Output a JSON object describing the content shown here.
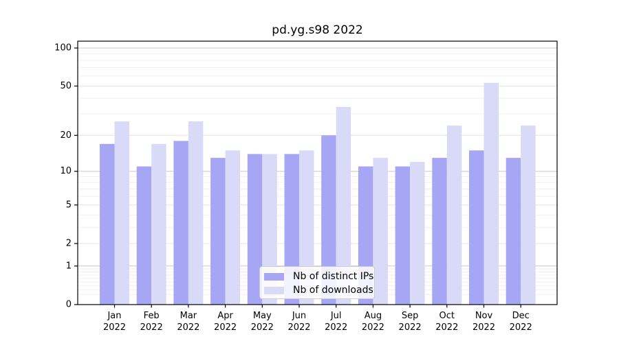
{
  "title": "pd.yg.s98 2022",
  "chart_data": {
    "type": "bar",
    "title": "pd.yg.s98 2022",
    "categories": [
      "Jan 2022",
      "Feb 2022",
      "Mar 2022",
      "Apr 2022",
      "May 2022",
      "Jun 2022",
      "Jul 2022",
      "Aug 2022",
      "Sep 2022",
      "Oct 2022",
      "Nov 2022",
      "Dec 2022"
    ],
    "series": [
      {
        "name": "Nb of distinct IPs",
        "color": "#a6a6f5",
        "values": [
          17,
          11,
          18,
          13,
          14,
          14,
          20,
          11,
          11,
          13,
          15,
          13
        ]
      },
      {
        "name": "Nb of downloads",
        "color": "#d9d9f8",
        "values": [
          26,
          17,
          26,
          15,
          14,
          15,
          34,
          13,
          12,
          24,
          53,
          24
        ]
      }
    ],
    "xlabel": "",
    "ylabel": "",
    "yscale": "log1p",
    "ylim": [
      0,
      113
    ],
    "y_major_ticks": [
      0,
      1,
      2,
      5,
      10,
      20,
      50,
      100
    ],
    "y_minor_ticks": [
      0.2,
      0.3,
      0.4,
      0.5,
      0.6,
      0.7,
      0.8,
      0.9,
      3,
      4,
      6,
      7,
      8,
      9,
      30,
      40,
      60,
      70,
      80,
      90
    ],
    "grid": true,
    "legend_position": "lower center"
  },
  "legend": {
    "items": [
      {
        "label": "Nb of distinct IPs"
      },
      {
        "label": "Nb of downloads"
      }
    ]
  },
  "colors": {
    "decade_gridline": "#c9c9c9",
    "major_gridline": "#e4e4e4",
    "minor_gridline": "#efefef",
    "spine": "#000000",
    "text": "#000000"
  }
}
